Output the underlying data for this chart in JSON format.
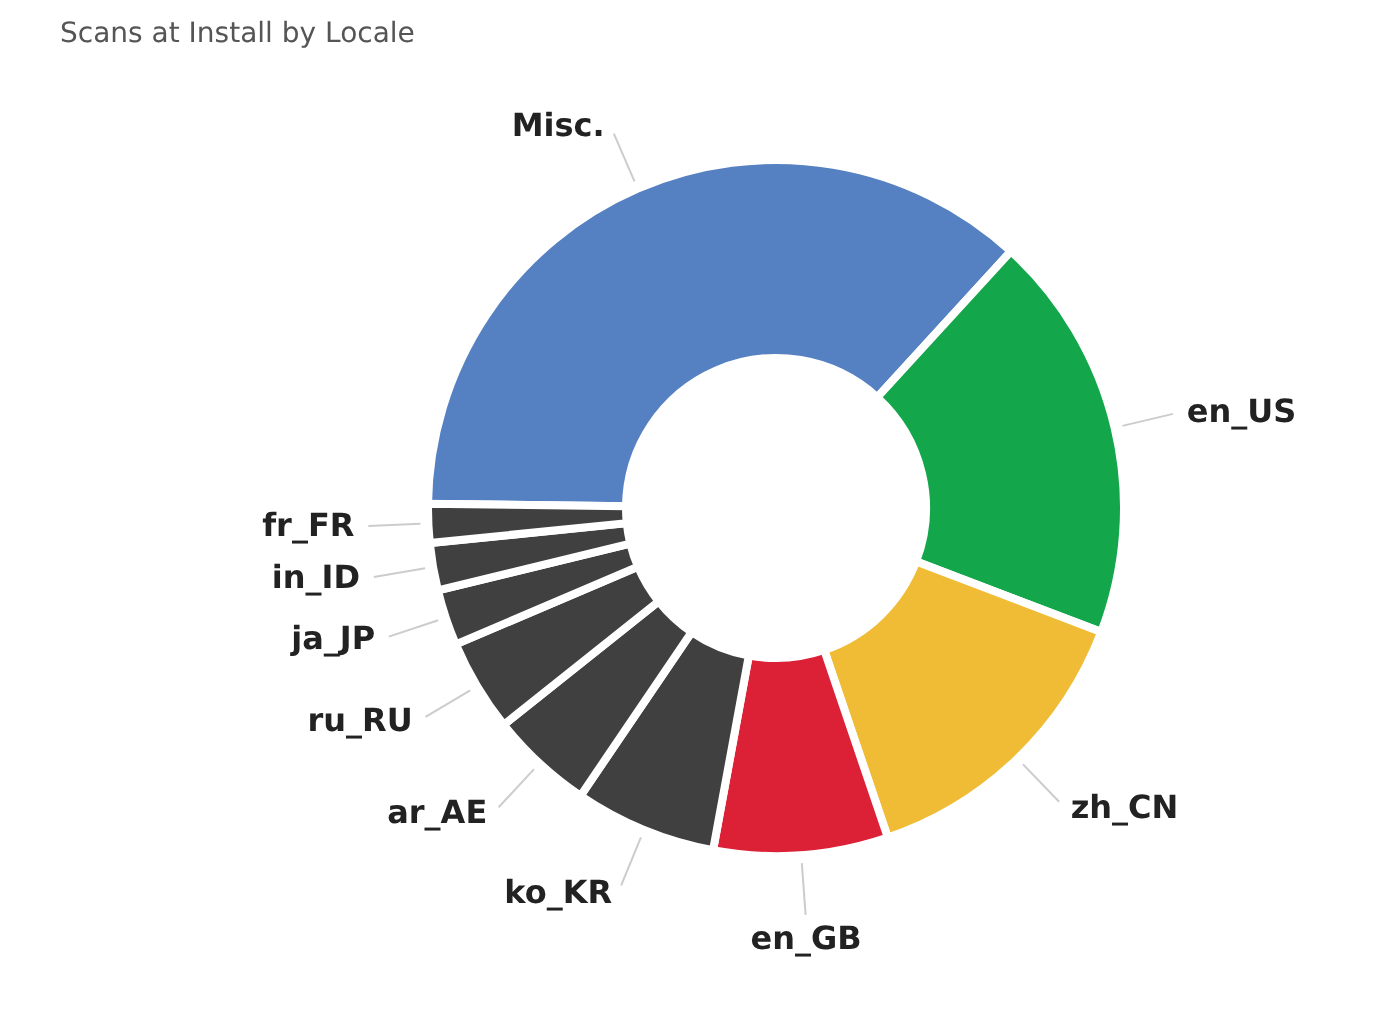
{
  "chart_data": {
    "type": "donut",
    "title": "Scans at Install by Locale",
    "categories": [
      "Misc.",
      "en_US",
      "zh_CN",
      "en_GB",
      "ko_KR",
      "ar_AE",
      "ru_RU",
      "ja_JP",
      "in_ID",
      "fr_FR"
    ],
    "values": [
      36.6,
      19.0,
      14.0,
      8.1,
      6.6,
      4.8,
      4.3,
      2.6,
      2.2,
      1.8
    ],
    "colors": [
      "#5580c2",
      "#13a64a",
      "#f0bc35",
      "#dc2137",
      "#404040",
      "#404040",
      "#404040",
      "#404040",
      "#404040",
      "#404040"
    ]
  }
}
